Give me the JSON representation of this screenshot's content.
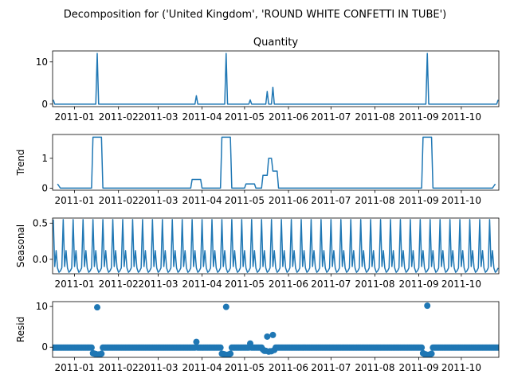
{
  "figure": {
    "title": "Decomposition for ('United Kingdom', 'ROUND WHITE CONFETTI IN TUBE')"
  },
  "colors": {
    "series": "#1f77b4",
    "axes": "#000000"
  },
  "chart_data": [
    {
      "id": "quantity",
      "type": "line",
      "title": "Quantity",
      "ylabel": "",
      "xlim": [
        "2010-12-01",
        "2010-12-01"
      ],
      "date_start": "2010-12-17",
      "date_end": "2011-10-27",
      "ylim": [
        -0.6,
        12.6
      ],
      "yticks": [
        0,
        10
      ],
      "xticks": [
        "2011-01",
        "2011-02",
        "2011-03",
        "2011-04",
        "2011-05",
        "2011-06",
        "2011-07",
        "2011-08",
        "2011-09",
        "2011-10"
      ],
      "baseline": 0,
      "spikes": [
        {
          "date": "2010-12-17",
          "value": 1
        },
        {
          "date": "2011-01-17",
          "value": 12
        },
        {
          "date": "2011-03-28",
          "value": 2
        },
        {
          "date": "2011-04-18",
          "value": 12
        },
        {
          "date": "2011-05-05",
          "value": 1
        },
        {
          "date": "2011-05-17",
          "value": 3
        },
        {
          "date": "2011-05-21",
          "value": 4
        },
        {
          "date": "2011-09-07",
          "value": 12
        },
        {
          "date": "2011-10-27",
          "value": 1
        }
      ]
    },
    {
      "id": "trend",
      "type": "line",
      "title": "",
      "ylabel": "Trend",
      "ylim": [
        -0.07,
        1.8
      ],
      "yticks": [
        0,
        1
      ],
      "xticks": [
        "2011-01",
        "2011-02",
        "2011-03",
        "2011-04",
        "2011-05",
        "2011-06",
        "2011-07",
        "2011-08",
        "2011-09",
        "2011-10"
      ],
      "points": [
        {
          "date": "2010-12-20",
          "value": 0.14
        },
        {
          "date": "2010-12-22",
          "value": 0.0
        },
        {
          "date": "2011-01-13",
          "value": 0.0
        },
        {
          "date": "2011-01-14",
          "value": 1.71
        },
        {
          "date": "2011-01-20",
          "value": 1.71
        },
        {
          "date": "2011-01-21",
          "value": 0.0
        },
        {
          "date": "2011-03-24",
          "value": 0.0
        },
        {
          "date": "2011-03-25",
          "value": 0.29
        },
        {
          "date": "2011-03-31",
          "value": 0.29
        },
        {
          "date": "2011-04-01",
          "value": 0.0
        },
        {
          "date": "2011-04-14",
          "value": 0.0
        },
        {
          "date": "2011-04-15",
          "value": 1.71
        },
        {
          "date": "2011-04-21",
          "value": 1.71
        },
        {
          "date": "2011-04-22",
          "value": 0.0
        },
        {
          "date": "2011-05-01",
          "value": 0.0
        },
        {
          "date": "2011-05-02",
          "value": 0.14
        },
        {
          "date": "2011-05-08",
          "value": 0.14
        },
        {
          "date": "2011-05-09",
          "value": 0.0
        },
        {
          "date": "2011-05-13",
          "value": 0.0
        },
        {
          "date": "2011-05-14",
          "value": 0.43
        },
        {
          "date": "2011-05-17",
          "value": 0.43
        },
        {
          "date": "2011-05-18",
          "value": 1.0
        },
        {
          "date": "2011-05-20",
          "value": 1.0
        },
        {
          "date": "2011-05-21",
          "value": 0.57
        },
        {
          "date": "2011-05-24",
          "value": 0.57
        },
        {
          "date": "2011-05-25",
          "value": 0.0
        },
        {
          "date": "2011-09-03",
          "value": 0.0
        },
        {
          "date": "2011-09-04",
          "value": 1.71
        },
        {
          "date": "2011-09-10",
          "value": 1.71
        },
        {
          "date": "2011-09-11",
          "value": 0.0
        },
        {
          "date": "2011-10-23",
          "value": 0.0
        },
        {
          "date": "2011-10-25",
          "value": 0.14
        }
      ]
    },
    {
      "id": "seasonal",
      "type": "line",
      "title": "",
      "ylabel": "Seasonal",
      "ylim": [
        -0.2,
        0.57
      ],
      "yticks": [
        0.0,
        0.5
      ],
      "ytick_labels": [
        "0.0",
        "0.5"
      ],
      "xticks": [
        "2011-01",
        "2011-02",
        "2011-03",
        "2011-04",
        "2011-05",
        "2011-06",
        "2011-07",
        "2011-08",
        "2011-09",
        "2011-10"
      ],
      "period_days": 7,
      "cycle_start": "2010-12-17",
      "cycle_values": [
        0.55,
        -0.1,
        0.12,
        -0.12,
        -0.18,
        -0.16,
        -0.12
      ]
    },
    {
      "id": "resid",
      "type": "scatter",
      "title": "",
      "ylabel": "Resid",
      "ylim": [
        -2.5,
        11.2
      ],
      "yticks": [
        0,
        10
      ],
      "xticks": [
        "2011-01",
        "2011-02",
        "2011-03",
        "2011-04",
        "2011-05",
        "2011-06",
        "2011-07",
        "2011-08",
        "2011-09",
        "2011-10"
      ],
      "baseline": -0.1,
      "outliers": [
        {
          "date": "2011-01-14",
          "value": -1.5
        },
        {
          "date": "2011-01-15",
          "value": -1.6
        },
        {
          "date": "2011-01-16",
          "value": -1.7
        },
        {
          "date": "2011-01-17",
          "value": 9.8
        },
        {
          "date": "2011-01-18",
          "value": -1.8
        },
        {
          "date": "2011-01-19",
          "value": -1.8
        },
        {
          "date": "2011-01-20",
          "value": -1.6
        },
        {
          "date": "2011-03-28",
          "value": 1.3
        },
        {
          "date": "2011-04-15",
          "value": -1.6
        },
        {
          "date": "2011-04-16",
          "value": -1.7
        },
        {
          "date": "2011-04-17",
          "value": -1.8
        },
        {
          "date": "2011-04-18",
          "value": 9.9
        },
        {
          "date": "2011-04-19",
          "value": -1.9
        },
        {
          "date": "2011-04-20",
          "value": -1.8
        },
        {
          "date": "2011-04-21",
          "value": -1.6
        },
        {
          "date": "2011-05-05",
          "value": 0.9
        },
        {
          "date": "2011-05-14",
          "value": -0.6
        },
        {
          "date": "2011-05-15",
          "value": -0.9
        },
        {
          "date": "2011-05-16",
          "value": -0.9
        },
        {
          "date": "2011-05-17",
          "value": 2.6
        },
        {
          "date": "2011-05-18",
          "value": -1.1
        },
        {
          "date": "2011-05-19",
          "value": -1.0
        },
        {
          "date": "2011-05-20",
          "value": -1.0
        },
        {
          "date": "2011-05-21",
          "value": 3.0
        },
        {
          "date": "2011-05-22",
          "value": -0.7
        },
        {
          "date": "2011-09-04",
          "value": -1.5
        },
        {
          "date": "2011-09-05",
          "value": -1.7
        },
        {
          "date": "2011-09-06",
          "value": -1.8
        },
        {
          "date": "2011-09-07",
          "value": 10.2
        },
        {
          "date": "2011-09-08",
          "value": -1.9
        },
        {
          "date": "2011-09-09",
          "value": -1.8
        },
        {
          "date": "2011-09-10",
          "value": -1.6
        }
      ]
    }
  ]
}
